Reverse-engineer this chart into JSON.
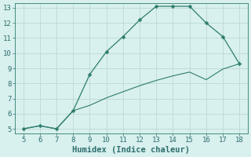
{
  "xlabel": "Humidex (Indice chaleur)",
  "xlim": [
    5,
    18
  ],
  "ylim": [
    5,
    13
  ],
  "xticks": [
    5,
    6,
    7,
    8,
    9,
    10,
    11,
    12,
    13,
    14,
    15,
    16,
    17,
    18
  ],
  "yticks": [
    5,
    6,
    7,
    8,
    9,
    10,
    11,
    12,
    13
  ],
  "line_x": [
    5,
    6,
    7,
    8,
    9,
    10,
    11,
    12,
    13,
    14,
    15,
    16,
    17,
    18
  ],
  "line_y": [
    5.0,
    5.2,
    5.0,
    6.2,
    8.6,
    10.1,
    11.1,
    12.2,
    13.1,
    13.1,
    13.1,
    12.0,
    11.1,
    9.3
  ],
  "lower_line_x": [
    5,
    6,
    7,
    8,
    9,
    10,
    11,
    12,
    13,
    14,
    15,
    16,
    17,
    18
  ],
  "lower_line_y": [
    5.0,
    5.2,
    5.0,
    6.2,
    6.55,
    7.05,
    7.45,
    7.85,
    8.2,
    8.5,
    8.75,
    8.25,
    8.95,
    9.3
  ],
  "line_color": "#2e7d6e",
  "bg_color": "#d8f0ee",
  "grid_color": "#c0dcd8",
  "font_color": "#2e6e6e",
  "tick_fontsize": 6.5,
  "xlabel_fontsize": 7.5,
  "markersize": 2.5
}
